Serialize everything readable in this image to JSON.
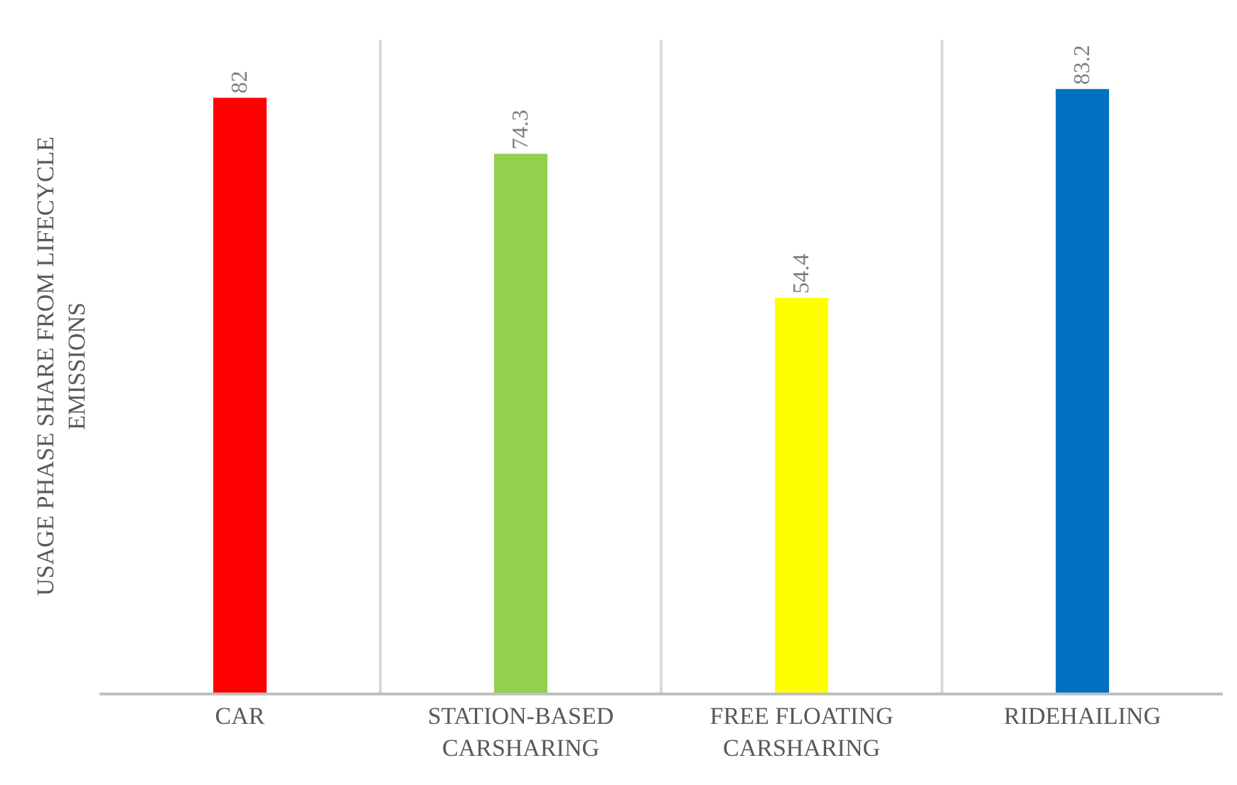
{
  "chart_data": {
    "type": "bar",
    "ylabel": "USAGE PHASE SHARE FROM LIFECYCLE EMISSIONS",
    "categories": [
      "CAR",
      "STATION-BASED CARSHARING",
      "FREE FLOATING CARSHARING",
      "RIDEHAILING"
    ],
    "values": [
      82,
      74.3,
      54.4,
      83.2
    ],
    "colors": [
      "#ff0000",
      "#92d050",
      "#ffff00",
      "#0070c0"
    ],
    "ylim": [
      0,
      90
    ],
    "data_labels": true,
    "grid": "x",
    "legend": false
  }
}
